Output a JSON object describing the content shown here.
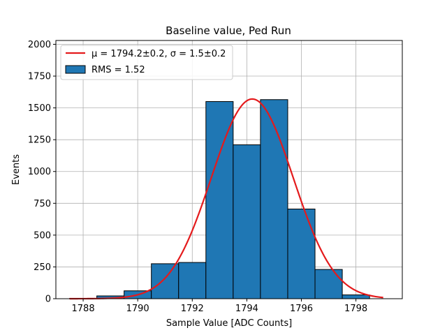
{
  "chart_data": {
    "type": "bar",
    "title": "Baseline value, Ped Run",
    "xlabel": "Sample Value [ADC Counts]",
    "ylabel": "Events",
    "xlim": [
      1787.0,
      1799.7
    ],
    "ylim": [
      0,
      2030
    ],
    "xticks": [
      1788,
      1790,
      1792,
      1794,
      1796,
      1798
    ],
    "yticks": [
      0,
      250,
      500,
      750,
      1000,
      1250,
      1500,
      1750,
      2000
    ],
    "grid": true,
    "legend_position": "top-left",
    "bin_edges": [
      1786.5,
      1787.5,
      1788.5,
      1789.5,
      1790.5,
      1791.5,
      1792.5,
      1793.5,
      1794.5,
      1795.5,
      1796.5,
      1797.5,
      1798.5
    ],
    "series": [
      {
        "name": "RMS = 1.52",
        "kind": "histogram",
        "color": "#1f77b4",
        "edgecolor": "#000000",
        "values": [
          0,
          2,
          22,
          62,
          275,
          285,
          1550,
          1210,
          1565,
          705,
          230,
          30
        ]
      },
      {
        "name": "μ = 1794.2±0.2, σ = 1.5±0.2",
        "kind": "gaussian-fit",
        "color": "#e41a1c",
        "mu": 1794.2,
        "sigma": 1.5,
        "amplitude": 1570,
        "x_range": [
          1787.5,
          1799.0
        ]
      }
    ]
  }
}
